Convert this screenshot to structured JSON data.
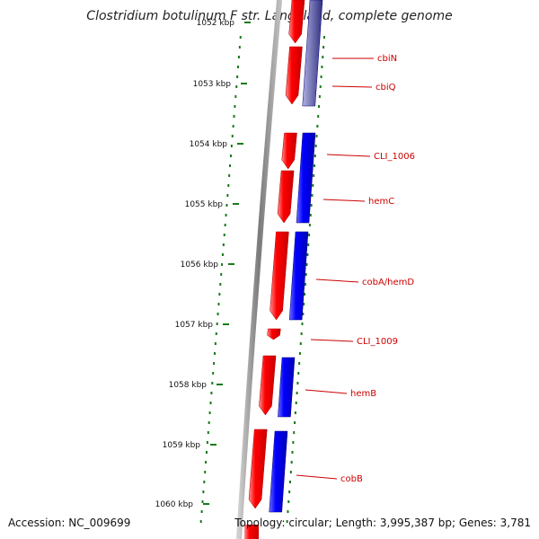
{
  "title": "Clostridium botulinum F str. Langeland, complete genome",
  "footer": {
    "accession": "Accession: NC_009699",
    "topology": "Topology: circular; Length: 3,995,387 bp; Genes: 3,781"
  },
  "colors": {
    "forward_gene": "#ff0000",
    "reverse_gene": "#0000ff",
    "tick": "#1a7a1a",
    "label": "#cc0000",
    "backbone": "#888888"
  },
  "ticks": [
    {
      "label": "1052 kbp",
      "value": 1052
    },
    {
      "label": "1053 kbp",
      "value": 1053
    },
    {
      "label": "1054 kbp",
      "value": 1054
    },
    {
      "label": "1055 kbp",
      "value": 1055
    },
    {
      "label": "1056 kbp",
      "value": 1056
    },
    {
      "label": "1057 kbp",
      "value": 1057
    },
    {
      "label": "1058 kbp",
      "value": 1058
    },
    {
      "label": "1059 kbp",
      "value": 1059
    },
    {
      "label": "1060 kbp",
      "value": 1060
    }
  ],
  "genes": [
    {
      "name": "cbiN",
      "label": "cbiN"
    },
    {
      "name": "cbiQ",
      "label": "cbiQ"
    },
    {
      "name": "CLI_1006",
      "label": "CLI_1006"
    },
    {
      "name": "hemC",
      "label": "hemC"
    },
    {
      "name": "cobA/hemD",
      "label": "cobA/hemD"
    },
    {
      "name": "CLI_1009",
      "label": "CLI_1009"
    },
    {
      "name": "hemB",
      "label": "hemB"
    },
    {
      "name": "cobB",
      "label": "cobB"
    }
  ]
}
